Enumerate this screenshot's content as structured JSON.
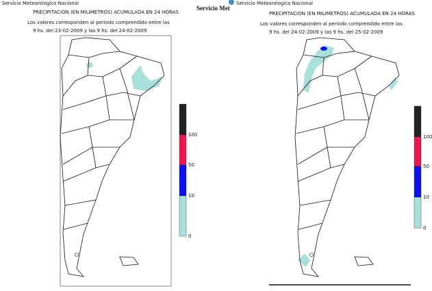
{
  "header_overlay": "Servicio Met",
  "panels": [
    {
      "agency": "Servicio Meteorologico Nacional",
      "title": "PRECIPITACION (EN MILIMETROS) ACUMULADA EN 24 HORAS",
      "period_note": "Los valores corresponden al período comprendido entre las",
      "period": "9 hs. del 23-02-2009  y las 9 hs. del 24-02-2009",
      "legend": [
        {
          "label": 100,
          "color": "#222222"
        },
        {
          "label": 50,
          "color": "#f0164a"
        },
        {
          "label": 10,
          "color": "#0a10f0"
        },
        {
          "label": 0,
          "color": "#a8e0dc"
        }
      ]
    },
    {
      "agency": "Servicio Meteorologico Nacional",
      "title": "PRECIPITACION (EN MILIMETROS) ACUMULADA EN 24 HORAS",
      "period_note": "Los valores corresponden al período comprendido entre las",
      "period": "9 hs. del 24-02-2009  y las 9 hs. del 25-02-2009",
      "legend": [
        {
          "label": 100,
          "color": "#222222"
        },
        {
          "label": 50,
          "color": "#f0164a"
        },
        {
          "label": 10,
          "color": "#0a10f0"
        },
        {
          "label": 0,
          "color": "#a8e0dc"
        }
      ]
    }
  ]
}
